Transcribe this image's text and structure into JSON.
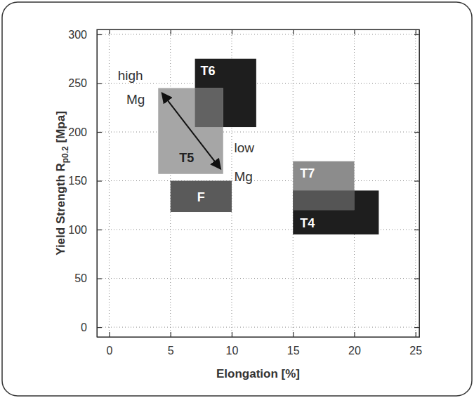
{
  "chart_data": {
    "type": "range",
    "x_label": "Elongation [%]",
    "y_label": [
      "Yield Strength R",
      "p0.2",
      " [Mpa]"
    ],
    "xlim": [
      -1,
      25.3
    ],
    "ylim": [
      -10,
      305
    ],
    "xticks": [
      0,
      5,
      10,
      15,
      20,
      25
    ],
    "yticks": [
      0,
      50,
      100,
      150,
      200,
      250,
      300
    ],
    "grid": true,
    "regions": [
      {
        "name": "T6",
        "x": [
          7,
          12
        ],
        "y": [
          205,
          275
        ],
        "color": "#1e1e1e"
      },
      {
        "name": "T5",
        "x": [
          4,
          9.3
        ],
        "y": [
          157,
          245
        ],
        "color": "#a6a6a6"
      },
      {
        "name": "F",
        "x": [
          5,
          10
        ],
        "y": [
          118,
          150
        ],
        "color": "#5a5a5a"
      },
      {
        "name": "T4",
        "x": [
          15,
          22
        ],
        "y": [
          95,
          140
        ],
        "color": "#1e1e1e"
      },
      {
        "name": "T7",
        "x": [
          15,
          20
        ],
        "y": [
          120,
          170
        ],
        "color": "#8c8c8c"
      }
    ],
    "annotations": [
      "high",
      "Mg",
      "low",
      "Mg"
    ]
  }
}
